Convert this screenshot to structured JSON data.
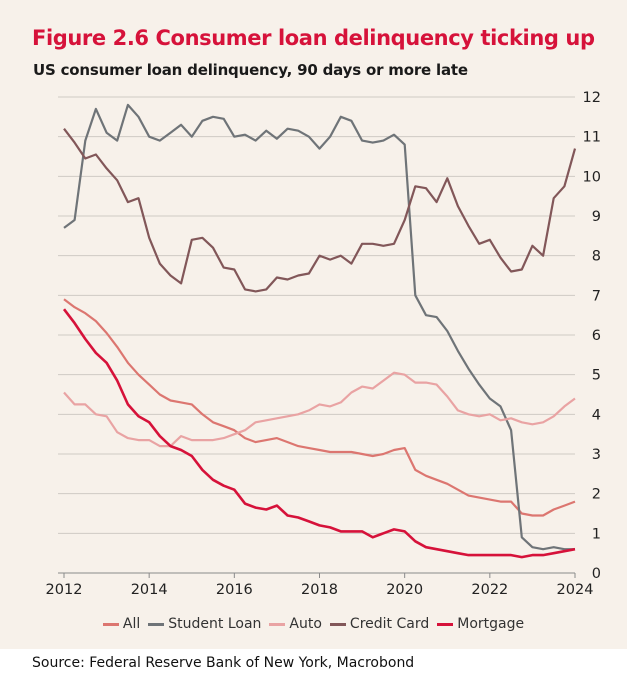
{
  "title": "Figure 2.6 Consumer loan delinquency ticking up",
  "subtitle": "US consumer loan delinquency, 90 days or more late",
  "source": "Source: Federal Reserve Bank of New York, Macrobond",
  "chart_data": {
    "type": "line",
    "x_tick_labels": [
      "2012",
      "2014",
      "2016",
      "2018",
      "2020",
      "2022",
      "2024"
    ],
    "y_tick_labels": [
      "0",
      "1",
      "2",
      "3",
      "4",
      "5",
      "6",
      "7",
      "8",
      "9",
      "10",
      "11",
      "12"
    ],
    "xlim": [
      2012,
      2024
    ],
    "ylim": [
      0,
      12
    ],
    "y_axis_side": "right",
    "grid": "horizontal",
    "legend_position": "bottom",
    "x": [
      2012.0,
      2012.25,
      2012.5,
      2012.75,
      2013.0,
      2013.25,
      2013.5,
      2013.75,
      2014.0,
      2014.25,
      2014.5,
      2014.75,
      2015.0,
      2015.25,
      2015.5,
      2015.75,
      2016.0,
      2016.25,
      2016.5,
      2016.75,
      2017.0,
      2017.25,
      2017.5,
      2017.75,
      2018.0,
      2018.25,
      2018.5,
      2018.75,
      2019.0,
      2019.25,
      2019.5,
      2019.75,
      2020.0,
      2020.25,
      2020.5,
      2020.75,
      2021.0,
      2021.25,
      2021.5,
      2021.75,
      2022.0,
      2022.25,
      2022.5,
      2022.75,
      2023.0,
      2023.25,
      2023.5,
      2023.75,
      2024.0
    ],
    "series": [
      {
        "name": "All",
        "color": "#dc7670",
        "values": [
          6.9,
          6.7,
          6.55,
          6.35,
          6.05,
          5.7,
          5.3,
          5.0,
          4.75,
          4.5,
          4.35,
          4.3,
          4.25,
          4.0,
          3.8,
          3.7,
          3.6,
          3.4,
          3.3,
          3.35,
          3.4,
          3.3,
          3.2,
          3.15,
          3.1,
          3.05,
          3.05,
          3.05,
          3.0,
          2.95,
          3.0,
          3.1,
          3.15,
          2.6,
          2.45,
          2.35,
          2.25,
          2.1,
          1.95,
          1.9,
          1.85,
          1.8,
          1.8,
          1.5,
          1.45,
          1.45,
          1.6,
          1.7,
          1.8
        ]
      },
      {
        "name": "Student Loan",
        "color": "#6f7478",
        "values": [
          8.7,
          8.9,
          10.9,
          11.7,
          11.1,
          10.9,
          11.8,
          11.5,
          11.0,
          10.9,
          11.1,
          11.3,
          11.0,
          11.4,
          11.5,
          11.45,
          11.0,
          11.05,
          10.9,
          11.15,
          10.95,
          11.2,
          11.15,
          11.0,
          10.7,
          11.0,
          11.5,
          11.4,
          10.9,
          10.85,
          10.9,
          11.05,
          10.8,
          7.0,
          6.5,
          6.45,
          6.1,
          5.6,
          5.15,
          4.75,
          4.4,
          4.2,
          3.6,
          0.9,
          0.65,
          0.6,
          0.65,
          0.6,
          0.6
        ]
      },
      {
        "name": "Auto",
        "color": "#e9a3a3",
        "values": [
          4.55,
          4.25,
          4.25,
          4.0,
          3.95,
          3.55,
          3.4,
          3.35,
          3.35,
          3.2,
          3.2,
          3.45,
          3.35,
          3.35,
          3.35,
          3.4,
          3.5,
          3.6,
          3.8,
          3.85,
          3.9,
          3.95,
          4.0,
          4.1,
          4.25,
          4.2,
          4.3,
          4.55,
          4.7,
          4.65,
          4.85,
          5.05,
          5.0,
          4.8,
          4.8,
          4.75,
          4.45,
          4.1,
          4.0,
          3.95,
          4.0,
          3.85,
          3.9,
          3.8,
          3.75,
          3.8,
          3.95,
          4.2,
          4.4
        ]
      },
      {
        "name": "Credit Card",
        "color": "#825759",
        "values": [
          11.2,
          10.85,
          10.45,
          10.55,
          10.2,
          9.9,
          9.35,
          9.45,
          8.45,
          7.8,
          7.5,
          7.3,
          8.4,
          8.45,
          8.2,
          7.7,
          7.65,
          7.15,
          7.1,
          7.15,
          7.45,
          7.4,
          7.5,
          7.55,
          8.0,
          7.9,
          8.0,
          7.8,
          8.3,
          8.3,
          8.25,
          8.3,
          8.9,
          9.75,
          9.7,
          9.35,
          9.95,
          9.25,
          8.75,
          8.3,
          8.4,
          7.95,
          7.6,
          7.65,
          8.25,
          8.0,
          9.45,
          9.75,
          10.7
        ]
      },
      {
        "name": "Mortgage",
        "color": "#d6123a",
        "values": [
          6.65,
          6.3,
          5.9,
          5.55,
          5.3,
          4.85,
          4.25,
          3.95,
          3.8,
          3.45,
          3.2,
          3.1,
          2.95,
          2.6,
          2.35,
          2.2,
          2.1,
          1.75,
          1.65,
          1.6,
          1.7,
          1.45,
          1.4,
          1.3,
          1.2,
          1.15,
          1.05,
          1.05,
          1.05,
          0.9,
          1.0,
          1.1,
          1.05,
          0.8,
          0.65,
          0.6,
          0.55,
          0.5,
          0.45,
          0.45,
          0.45,
          0.45,
          0.45,
          0.4,
          0.45,
          0.45,
          0.5,
          0.55,
          0.6
        ]
      }
    ]
  }
}
